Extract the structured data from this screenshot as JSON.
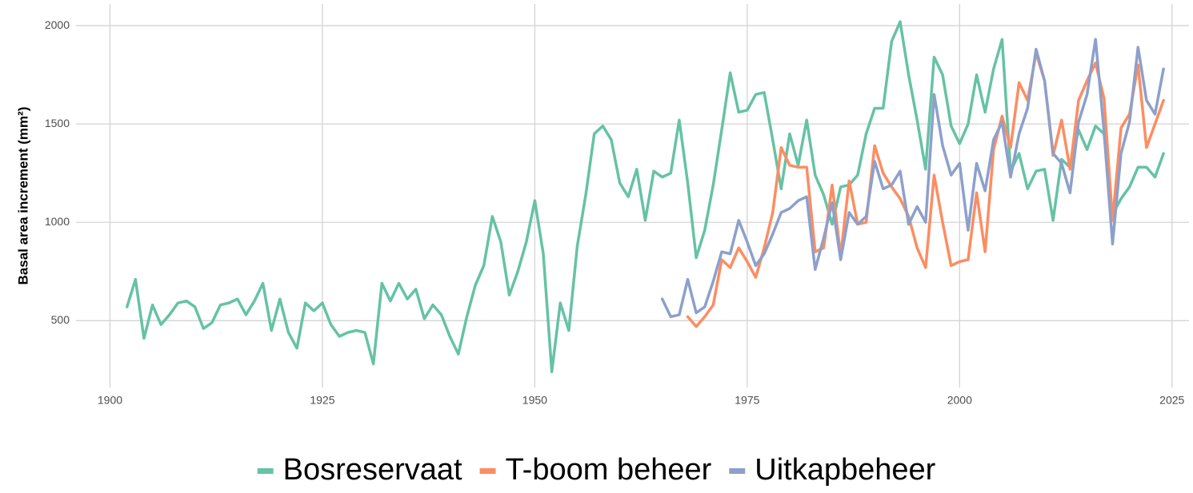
{
  "chart_data": {
    "type": "line",
    "y_label": "Basal area increment (mm²)",
    "xlim": [
      1896,
      2027
    ],
    "ylim": [
      160,
      2110
    ],
    "xticks": [
      1900,
      1925,
      1950,
      1975,
      2000,
      2025
    ],
    "yticks": [
      500,
      1000,
      1500,
      2000
    ],
    "grid": true,
    "legend": "bottom",
    "x": [
      1902,
      1903,
      1904,
      1905,
      1906,
      1907,
      1908,
      1909,
      1910,
      1911,
      1912,
      1913,
      1914,
      1915,
      1916,
      1917,
      1918,
      1919,
      1920,
      1921,
      1922,
      1923,
      1924,
      1925,
      1926,
      1927,
      1928,
      1929,
      1930,
      1931,
      1932,
      1933,
      1934,
      1935,
      1936,
      1937,
      1938,
      1939,
      1940,
      1941,
      1942,
      1943,
      1944,
      1945,
      1946,
      1947,
      1948,
      1949,
      1950,
      1951,
      1952,
      1953,
      1954,
      1955,
      1956,
      1957,
      1958,
      1959,
      1960,
      1961,
      1962,
      1963,
      1964,
      1965,
      1966,
      1967,
      1968,
      1969,
      1970,
      1971,
      1972,
      1973,
      1974,
      1975,
      1976,
      1977,
      1978,
      1979,
      1980,
      1981,
      1982,
      1983,
      1984,
      1985,
      1986,
      1987,
      1988,
      1989,
      1990,
      1991,
      1992,
      1993,
      1994,
      1995,
      1996,
      1997,
      1998,
      1999,
      2000,
      2001,
      2002,
      2003,
      2004,
      2005,
      2006,
      2007,
      2008,
      2009,
      2010,
      2011,
      2012,
      2013,
      2014,
      2015,
      2016,
      2017,
      2018,
      2019,
      2020,
      2021,
      2022,
      2023,
      2024
    ],
    "series": [
      {
        "name": "Bosreservaat",
        "color": "#66c2a5",
        "values": [
          570,
          710,
          410,
          580,
          480,
          530,
          590,
          600,
          570,
          460,
          490,
          580,
          590,
          610,
          530,
          600,
          690,
          450,
          610,
          440,
          360,
          590,
          550,
          590,
          480,
          420,
          440,
          450,
          440,
          280,
          690,
          600,
          690,
          610,
          660,
          510,
          580,
          530,
          420,
          330,
          520,
          680,
          780,
          1030,
          900,
          630,
          750,
          900,
          1110,
          840,
          240,
          590,
          450,
          880,
          1140,
          1450,
          1490,
          1420,
          1200,
          1130,
          1270,
          1010,
          1260,
          1230,
          1250,
          1520,
          1200,
          820,
          960,
          1190,
          1470,
          1760,
          1560,
          1570,
          1650,
          1660,
          1420,
          1170,
          1450,
          1290,
          1520,
          1240,
          1140,
          990,
          1180,
          1190,
          1240,
          1450,
          1580,
          1580,
          1920,
          2020,
          1750,
          1520,
          1270,
          1840,
          1750,
          1490,
          1400,
          1500,
          1750,
          1560,
          1780,
          1930,
          1260,
          1350,
          1170,
          1260,
          1270,
          1010,
          1320,
          1280,
          1470,
          1370,
          1490,
          1450,
          1040,
          1120,
          1180,
          1280,
          1280,
          1230,
          1350
        ]
      },
      {
        "name": "T-boom beheer",
        "color": "#fc8d62",
        "values": [
          null,
          null,
          null,
          null,
          null,
          null,
          null,
          null,
          null,
          null,
          null,
          null,
          null,
          null,
          null,
          null,
          null,
          null,
          null,
          null,
          null,
          null,
          null,
          null,
          null,
          null,
          null,
          null,
          null,
          null,
          null,
          null,
          null,
          null,
          null,
          null,
          null,
          null,
          null,
          null,
          null,
          null,
          null,
          null,
          null,
          null,
          null,
          null,
          null,
          null,
          null,
          null,
          null,
          null,
          null,
          null,
          null,
          null,
          null,
          null,
          null,
          null,
          null,
          null,
          null,
          null,
          520,
          470,
          520,
          580,
          810,
          770,
          870,
          800,
          720,
          870,
          1050,
          1380,
          1290,
          1280,
          1280,
          850,
          870,
          1190,
          830,
          1210,
          990,
          1000,
          1390,
          1250,
          1180,
          1120,
          1030,
          870,
          770,
          1240,
          1000,
          780,
          800,
          810,
          1150,
          850,
          1370,
          1540,
          1380,
          1710,
          1620,
          1860,
          1720,
          1340,
          1520,
          1270,
          1620,
          1720,
          1810,
          1630,
          1010,
          1480,
          1550,
          1800,
          1380,
          1500,
          1620
        ]
      },
      {
        "name": "Uitkapbeheer",
        "color": "#8da0cb",
        "values": [
          null,
          null,
          null,
          null,
          null,
          null,
          null,
          null,
          null,
          null,
          null,
          null,
          null,
          null,
          null,
          null,
          null,
          null,
          null,
          null,
          null,
          null,
          null,
          null,
          null,
          null,
          null,
          null,
          null,
          null,
          null,
          null,
          null,
          null,
          null,
          null,
          null,
          null,
          null,
          null,
          null,
          null,
          null,
          null,
          null,
          null,
          null,
          null,
          null,
          null,
          null,
          null,
          null,
          null,
          null,
          null,
          null,
          null,
          null,
          null,
          null,
          null,
          null,
          610,
          520,
          530,
          710,
          540,
          570,
          700,
          850,
          840,
          1010,
          900,
          780,
          840,
          940,
          1050,
          1070,
          1110,
          1130,
          760,
          920,
          1100,
          810,
          1050,
          990,
          1030,
          1310,
          1170,
          1190,
          1260,
          990,
          1080,
          1000,
          1650,
          1390,
          1240,
          1300,
          960,
          1300,
          1160,
          1420,
          1510,
          1230,
          1450,
          1580,
          1880,
          1720,
          1350,
          1300,
          1150,
          1510,
          1650,
          1930,
          1460,
          890,
          1350,
          1510,
          1890,
          1620,
          1550,
          1780
        ]
      }
    ]
  }
}
